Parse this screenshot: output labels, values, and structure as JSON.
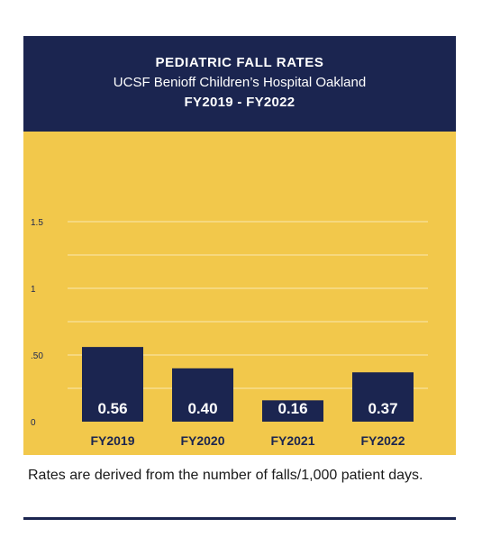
{
  "header": {
    "title": "PEDIATRIC FALL RATES",
    "subtitle": "UCSF Benioff Children’s Hospital Oakland",
    "period": "FY2019 - FY2022"
  },
  "chart_data": {
    "type": "bar",
    "categories": [
      "FY2019",
      "FY2020",
      "FY2021",
      "FY2022"
    ],
    "values": [
      0.56,
      0.4,
      0.16,
      0.37
    ],
    "value_labels": [
      "0.56",
      "0.40",
      "0.16",
      "0.37"
    ],
    "ylim": [
      0,
      1.5
    ],
    "yticks": [
      {
        "value": 0,
        "label": "0"
      },
      {
        "value": 0.5,
        "label": ".50"
      },
      {
        "value": 1,
        "label": "1"
      },
      {
        "value": 1.5,
        "label": "1.5"
      }
    ],
    "grid": true,
    "bar_color": "#1b2550",
    "background_color": "#f2c84b",
    "gridline_color": "#fbe9b0"
  },
  "footnote": "Rates are derived from the number of falls/1,000 patient days."
}
